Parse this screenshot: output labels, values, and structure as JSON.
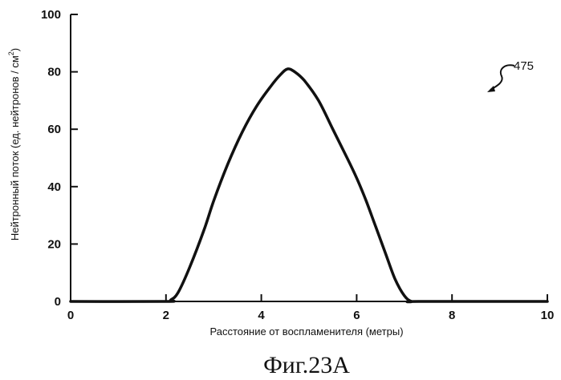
{
  "chart_data": {
    "type": "line",
    "xlabel": "Расстояние от воспламенителя (метры)",
    "ylabel_main": "Нейтронный поток (ед. нейтронов / см",
    "ylabel_sup": "2",
    "ylabel_end": ")",
    "xlim": [
      0,
      10
    ],
    "ylim": [
      0,
      100
    ],
    "x_ticks": [
      0,
      2,
      4,
      6,
      8,
      10
    ],
    "y_ticks": [
      0,
      20,
      40,
      60,
      80,
      100
    ],
    "grid": false,
    "series": [
      {
        "x": [
          0,
          2.0,
          2.1,
          2.25,
          2.5,
          2.8,
          3.0,
          3.3,
          3.6,
          3.9,
          4.2,
          4.4,
          4.55,
          4.7,
          4.9,
          5.2,
          5.5,
          5.8,
          6.0,
          6.2,
          6.4,
          6.6,
          6.8,
          7.0,
          7.15,
          7.3,
          10
        ],
        "y": [
          0,
          0,
          0.5,
          3,
          12,
          25,
          35,
          48,
          59,
          68,
          75,
          79,
          81,
          80,
          77,
          70,
          60,
          50,
          43,
          35,
          26,
          17,
          8,
          2,
          0,
          0,
          0
        ]
      }
    ],
    "annotation": {
      "label": "475"
    }
  },
  "figure": {
    "caption": "Фиг.23A"
  }
}
